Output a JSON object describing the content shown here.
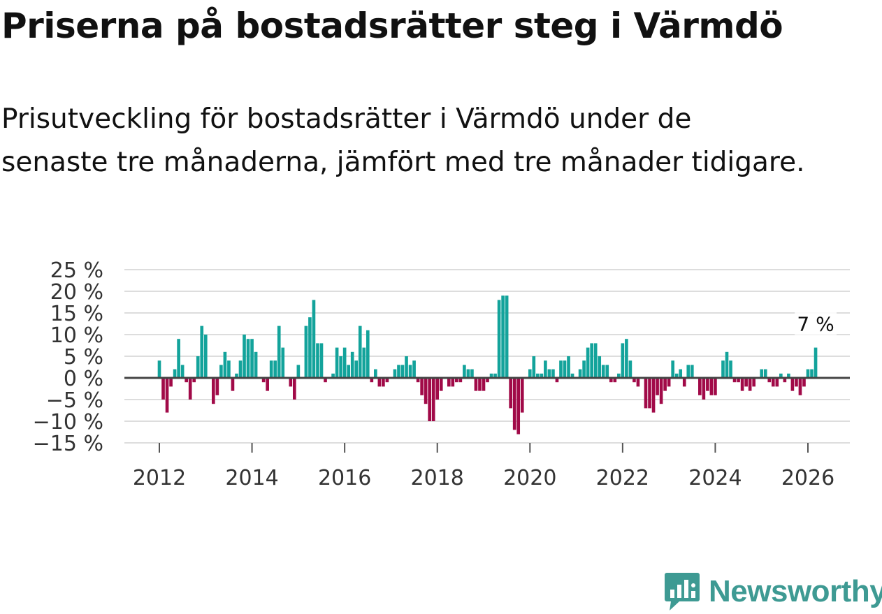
{
  "title": "Priserna på bostadsrätter steg i Värmdö",
  "subtitle": "Prisutveckling för bostadsrätter i Värmdö under de senaste tre månaderna, jämfört med tre månader tidigare.",
  "brand": {
    "name": "Newsworthy",
    "color": "#3e9a93"
  },
  "colors": {
    "positive": "#13a39b",
    "negative": "#a10a48",
    "grid": "#dddddd",
    "zero": "#444444"
  },
  "chart_data": {
    "type": "bar",
    "title": "Priserna på bostadsrätter steg i Värmdö",
    "xlabel": "",
    "ylabel": "",
    "ylim": [
      -15,
      25
    ],
    "yticks": [
      25,
      20,
      15,
      10,
      5,
      0,
      -5,
      -10,
      -15
    ],
    "ytick_labels": [
      "25 %",
      "20 %",
      "15 %",
      "10 %",
      "5 %",
      "0 %",
      "−5 %",
      "−10 %",
      "−15 %"
    ],
    "xticks": [
      {
        "label": "2012",
        "year": 2012
      },
      {
        "label": "2014",
        "year": 2014
      },
      {
        "label": "2016",
        "year": 2016
      },
      {
        "label": "2018",
        "year": 2018
      },
      {
        "label": "2020",
        "year": 2020
      },
      {
        "label": "2022",
        "year": 2022
      },
      {
        "label": "2024",
        "year": 2024
      },
      {
        "label": "2026",
        "year": 2026
      }
    ],
    "start": "2012-01",
    "end": "2026-03",
    "annotation": {
      "label": "7 %",
      "month": "2026-03",
      "value": 7
    },
    "values": [
      4,
      -5,
      -8,
      -2,
      2,
      9,
      3,
      -1,
      -5,
      -1,
      5,
      12,
      10,
      0,
      -6,
      -4,
      3,
      6,
      4,
      -3,
      1,
      4,
      10,
      9,
      9,
      6,
      0,
      -1,
      -3,
      4,
      4,
      12,
      7,
      0,
      -2,
      -5,
      3,
      0,
      12,
      14,
      18,
      8,
      8,
      -1,
      0,
      1,
      7,
      5,
      7,
      3,
      6,
      4,
      12,
      7,
      11,
      -1,
      2,
      -2,
      -2,
      -1,
      0,
      2,
      3,
      3,
      5,
      3,
      4,
      -1,
      -4,
      -6,
      -10,
      -10,
      -5,
      -3,
      0,
      -2,
      -2,
      -1,
      -1,
      3,
      2,
      2,
      -3,
      -3,
      -3,
      -1,
      1,
      1,
      18,
      19,
      19,
      -7,
      -12,
      -13,
      -8,
      0,
      2,
      5,
      1,
      1,
      4,
      2,
      2,
      -1,
      4,
      4,
      5,
      1,
      0,
      2,
      4,
      7,
      8,
      8,
      5,
      3,
      3,
      -1,
      -1,
      1,
      8,
      9,
      4,
      -1,
      -2,
      0,
      -7,
      -7,
      -8,
      -4,
      -6,
      -3,
      -2,
      4,
      1,
      2,
      -2,
      3,
      3,
      0,
      -4,
      -5,
      -3,
      -4,
      -4,
      0,
      4,
      6,
      4,
      -1,
      -1,
      -3,
      -2,
      -3,
      -2,
      0,
      2,
      2,
      -1,
      -2,
      -2,
      1,
      -1,
      1,
      -3,
      -2,
      -4,
      -2,
      2,
      2,
      7
    ]
  }
}
